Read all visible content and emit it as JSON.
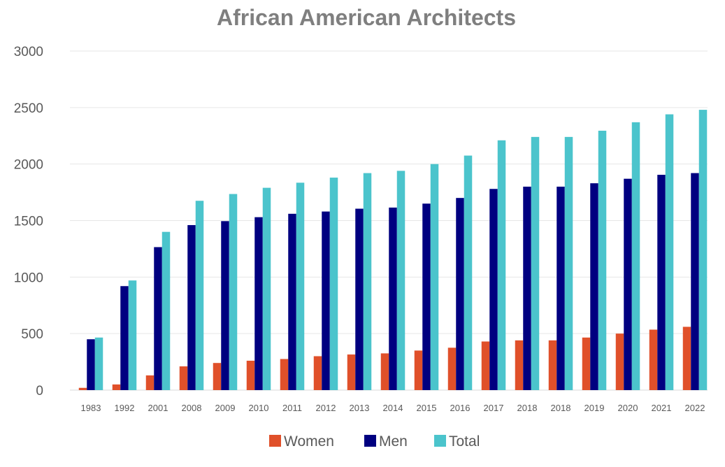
{
  "chart_data": {
    "type": "bar",
    "title": "African American Architects",
    "xlabel": "",
    "ylabel": "",
    "ylim": [
      0,
      3000
    ],
    "yticks": [
      0,
      500,
      1000,
      1500,
      2000,
      2500,
      3000
    ],
    "grid": true,
    "legend_position": "bottom",
    "categories": [
      "1983",
      "1992",
      "2001",
      "2008",
      "2009",
      "2010",
      "2011",
      "2012",
      "2013",
      "2014",
      "2015",
      "2016",
      "2017",
      "2018",
      "2018",
      "2019",
      "2020",
      "2021",
      "2022"
    ],
    "series": [
      {
        "name": "Women",
        "color": "#E0502A",
        "values": [
          20,
          50,
          130,
          210,
          240,
          260,
          275,
          300,
          315,
          325,
          350,
          375,
          430,
          440,
          440,
          465,
          500,
          535,
          560
        ]
      },
      {
        "name": "Men",
        "color": "#000080",
        "values": [
          450,
          920,
          1265,
          1460,
          1495,
          1530,
          1560,
          1580,
          1605,
          1615,
          1650,
          1700,
          1780,
          1800,
          1800,
          1830,
          1870,
          1905,
          1920
        ]
      },
      {
        "name": "Total",
        "color": "#4BC4CC",
        "values": [
          465,
          970,
          1400,
          1675,
          1735,
          1790,
          1835,
          1880,
          1920,
          1940,
          2000,
          2075,
          2210,
          2240,
          2240,
          2295,
          2370,
          2440,
          2480
        ]
      }
    ]
  }
}
